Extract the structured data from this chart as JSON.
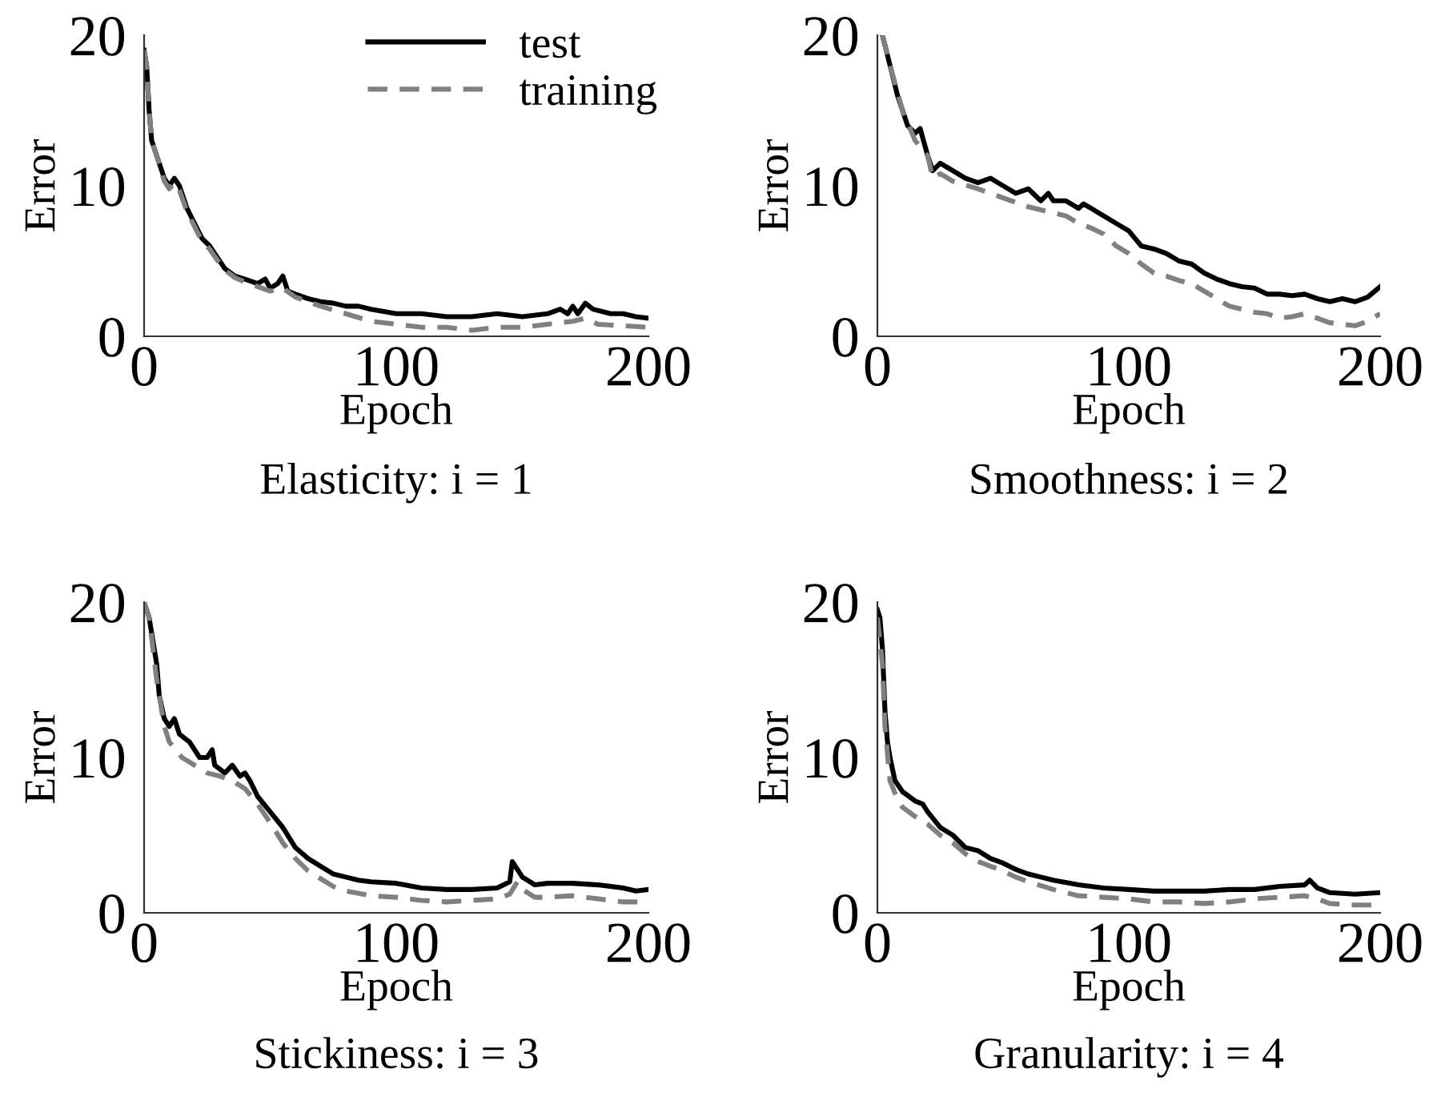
{
  "chart_data": [
    {
      "type": "line",
      "title": "Elasticity: i = 1",
      "xlabel": "Epoch",
      "ylabel": "Error",
      "xlim": [
        0,
        200
      ],
      "ylim": [
        0,
        20
      ],
      "xticks": [
        0,
        100,
        200
      ],
      "yticks": [
        0,
        10,
        20
      ],
      "grid": false,
      "legend": "top right",
      "series": [
        {
          "name": "test",
          "color": "#000000",
          "line_style": "solid",
          "x": [
            0,
            1,
            2,
            3,
            5,
            8,
            10,
            12,
            14,
            17,
            20,
            23,
            26,
            28,
            32,
            36,
            40,
            45,
            48,
            50,
            53,
            55,
            57,
            60,
            65,
            70,
            75,
            80,
            85,
            90,
            100,
            110,
            120,
            130,
            140,
            150,
            160,
            165,
            168,
            170,
            172,
            175,
            178,
            185,
            190,
            195,
            200
          ],
          "values": [
            19,
            18,
            15,
            13,
            12,
            10.5,
            10,
            10.5,
            10,
            8.5,
            7.5,
            6.5,
            6,
            5.5,
            4.5,
            4,
            3.8,
            3.5,
            3.8,
            3.2,
            3.5,
            4,
            3,
            2.8,
            2.5,
            2.3,
            2.2,
            2,
            2,
            1.8,
            1.5,
            1.5,
            1.3,
            1.3,
            1.5,
            1.3,
            1.5,
            1.8,
            1.5,
            2,
            1.5,
            2.2,
            1.8,
            1.5,
            1.5,
            1.3,
            1.2
          ]
        },
        {
          "name": "training",
          "color": "#808080",
          "line_style": "dashed",
          "x": [
            0,
            1,
            2,
            3,
            5,
            8,
            10,
            12,
            14,
            17,
            20,
            23,
            26,
            28,
            32,
            36,
            40,
            45,
            50,
            55,
            60,
            70,
            80,
            90,
            100,
            110,
            120,
            130,
            140,
            150,
            160,
            170,
            175,
            180,
            190,
            200
          ],
          "values": [
            19,
            18,
            15,
            13,
            12,
            10.3,
            9.8,
            10.2,
            9.7,
            8.3,
            7.3,
            6.3,
            5.8,
            5.3,
            4.4,
            3.9,
            3.6,
            3.3,
            3,
            3.2,
            2.6,
            2,
            1.5,
            1,
            0.8,
            0.6,
            0.6,
            0.4,
            0.6,
            0.6,
            0.8,
            1,
            1.2,
            0.8,
            0.7,
            0.6
          ]
        }
      ]
    },
    {
      "type": "line",
      "title": "Smoothness: i = 2",
      "xlabel": "Epoch",
      "ylabel": "Error",
      "xlim": [
        0,
        200
      ],
      "ylim": [
        0,
        20
      ],
      "xticks": [
        0,
        100,
        200
      ],
      "yticks": [
        0,
        10,
        20
      ],
      "grid": false,
      "series": [
        {
          "color": "#000000",
          "line_style": "solid",
          "x": [
            2,
            5,
            8,
            10,
            12,
            15,
            17,
            20,
            22,
            25,
            30,
            35,
            40,
            45,
            50,
            55,
            60,
            65,
            68,
            70,
            75,
            80,
            82,
            85,
            90,
            95,
            100,
            105,
            110,
            115,
            120,
            125,
            130,
            135,
            140,
            145,
            150,
            155,
            160,
            165,
            170,
            175,
            180,
            185,
            190,
            195,
            200
          ],
          "values": [
            20,
            18,
            16,
            15,
            14,
            13.5,
            13.8,
            12,
            11,
            11.5,
            11,
            10.5,
            10.2,
            10.5,
            10,
            9.5,
            9.8,
            9,
            9.5,
            9,
            9,
            8.5,
            8.8,
            8.5,
            8,
            7.5,
            7,
            6,
            5.8,
            5.5,
            5,
            4.8,
            4.2,
            3.8,
            3.5,
            3.3,
            3.2,
            2.8,
            2.8,
            2.7,
            2.8,
            2.5,
            2.3,
            2.5,
            2.3,
            2.6,
            3.3
          ]
        },
        {
          "color": "#808080",
          "line_style": "dashed",
          "x": [
            2,
            5,
            10,
            15,
            20,
            22,
            25,
            30,
            40,
            50,
            60,
            70,
            75,
            80,
            85,
            90,
            95,
            100,
            105,
            110,
            115,
            120,
            125,
            130,
            135,
            140,
            150,
            155,
            160,
            165,
            170,
            175,
            180,
            185,
            190,
            195,
            200
          ],
          "values": [
            20,
            18,
            15,
            13,
            12,
            10.5,
            10.8,
            10.3,
            9.8,
            9.2,
            8.6,
            8.2,
            8,
            7.5,
            7.2,
            6.8,
            6,
            5.5,
            4.8,
            4.2,
            4,
            3.7,
            3.5,
            3,
            2.5,
            2,
            1.6,
            1.5,
            1.2,
            1.3,
            1.5,
            1.2,
            0.9,
            0.8,
            0.7,
            1,
            1.5
          ]
        }
      ]
    },
    {
      "type": "line",
      "title": "Stickiness: i = 3",
      "xlabel": "Epoch",
      "ylabel": "Error",
      "xlim": [
        0,
        200
      ],
      "ylim": [
        0,
        20
      ],
      "xticks": [
        0,
        100,
        200
      ],
      "yticks": [
        0,
        10,
        20
      ],
      "grid": false,
      "series": [
        {
          "color": "#000000",
          "line_style": "solid",
          "x": [
            0,
            2,
            4,
            5,
            6,
            8,
            10,
            12,
            14,
            18,
            22,
            25,
            27,
            28,
            32,
            35,
            38,
            40,
            42,
            45,
            50,
            55,
            60,
            65,
            70,
            75,
            80,
            85,
            90,
            100,
            110,
            120,
            130,
            140,
            145,
            146,
            148,
            150,
            155,
            160,
            170,
            180,
            190,
            195,
            200
          ],
          "values": [
            20,
            19,
            17,
            16,
            14,
            12.5,
            12,
            12.5,
            11.5,
            11,
            10,
            10,
            10.5,
            9.5,
            9,
            9.5,
            8.8,
            9,
            8.5,
            7.5,
            6.5,
            5.5,
            4.2,
            3.5,
            3,
            2.5,
            2.3,
            2.1,
            2,
            1.9,
            1.6,
            1.5,
            1.5,
            1.6,
            2,
            3.3,
            2.8,
            2.3,
            1.8,
            1.9,
            1.9,
            1.8,
            1.6,
            1.4,
            1.5
          ]
        },
        {
          "color": "#808080",
          "line_style": "dashed",
          "x": [
            0,
            2,
            5,
            8,
            10,
            15,
            20,
            25,
            30,
            35,
            40,
            45,
            50,
            55,
            60,
            65,
            70,
            75,
            80,
            90,
            100,
            110,
            120,
            130,
            140,
            145,
            148,
            150,
            155,
            160,
            170,
            180,
            190,
            200
          ],
          "values": [
            20,
            19,
            15,
            12,
            11,
            10,
            9.5,
            9,
            8.8,
            8.5,
            8,
            7,
            5.8,
            4.5,
            3.5,
            2.7,
            2.2,
            1.7,
            1.4,
            1.1,
            1,
            0.8,
            0.7,
            0.8,
            0.9,
            1.2,
            2,
            1.5,
            1,
            1,
            1.1,
            0.9,
            0.7,
            0.7
          ]
        }
      ]
    },
    {
      "type": "line",
      "title": "Granularity: i = 4",
      "xlabel": "Epoch",
      "ylabel": "Error",
      "xlim": [
        0,
        200
      ],
      "ylim": [
        0,
        20
      ],
      "xticks": [
        0,
        100,
        200
      ],
      "yticks": [
        0,
        10,
        20
      ],
      "grid": false,
      "series": [
        {
          "color": "#000000",
          "line_style": "solid",
          "x": [
            0,
            1,
            2,
            3,
            4,
            5,
            7,
            10,
            15,
            18,
            20,
            25,
            30,
            35,
            40,
            45,
            50,
            55,
            60,
            65,
            70,
            80,
            90,
            100,
            110,
            120,
            130,
            140,
            150,
            160,
            170,
            172,
            175,
            180,
            190,
            200
          ],
          "values": [
            19.5,
            19,
            17,
            13,
            11,
            10,
            8.5,
            7.8,
            7.2,
            7,
            6.5,
            5.5,
            5,
            4.2,
            4,
            3.5,
            3.2,
            2.8,
            2.5,
            2.3,
            2.1,
            1.8,
            1.6,
            1.5,
            1.4,
            1.4,
            1.4,
            1.5,
            1.5,
            1.7,
            1.8,
            2.1,
            1.6,
            1.3,
            1.2,
            1.3
          ]
        },
        {
          "color": "#808080",
          "line_style": "dashed",
          "x": [
            0,
            2,
            3,
            5,
            8,
            10,
            15,
            20,
            25,
            30,
            35,
            40,
            45,
            50,
            55,
            60,
            70,
            80,
            90,
            100,
            110,
            120,
            130,
            140,
            150,
            160,
            170,
            175,
            180,
            190,
            200
          ],
          "values": [
            19,
            16,
            12,
            8.5,
            7.3,
            6.8,
            6.2,
            5.7,
            5,
            4.5,
            3.8,
            3.3,
            3,
            2.7,
            2.3,
            2,
            1.5,
            1.1,
            1,
            0.9,
            0.7,
            0.7,
            0.6,
            0.7,
            0.9,
            1,
            1.1,
            0.9,
            0.6,
            0.5,
            0.5
          ]
        }
      ]
    }
  ]
}
